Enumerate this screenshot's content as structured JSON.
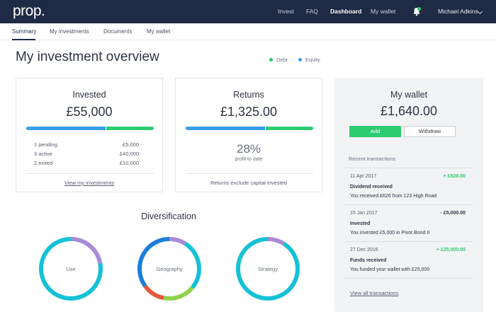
{
  "header": {
    "logo": "prop.",
    "nav": [
      "Invest",
      "FAQ",
      "Dashboard",
      "My wallet"
    ],
    "active_nav": "Dashboard",
    "notification_icon": "bell-icon",
    "user_name": "Michael Adkins",
    "user_menu_icon": "chevron-down-icon"
  },
  "subnav": {
    "tabs": [
      "Summary",
      "My investments",
      "Documents",
      "My wallet"
    ],
    "active": "Summary"
  },
  "page": {
    "title": "My investment overview",
    "legend": [
      {
        "label": "Debt",
        "color": "#2ecc71"
      },
      {
        "label": "Equity",
        "color": "#3a9ee8"
      }
    ]
  },
  "invested": {
    "title": "Invested",
    "amount": "£55,000",
    "bar_debt_fraction": 0.62,
    "rows": [
      {
        "label": "1 pending",
        "value": "£5,000"
      },
      {
        "label": "3 active",
        "value": "£40,000"
      },
      {
        "label": "2 exited",
        "value": "£10,000"
      }
    ],
    "link": "View my investments"
  },
  "returns": {
    "title": "Returns",
    "amount": "£1,325.00",
    "bar_debt_fraction": 0.62,
    "percent": "28%",
    "percent_label": "profit to date",
    "footnote": "Returns exclude capital invested"
  },
  "wallet": {
    "title": "My wallet",
    "amount": "£1,640.00",
    "add_label": "Add",
    "withdraw_label": "Withdraw",
    "recent_label": "Recent transactions",
    "transactions": [
      {
        "date": "11 Apr 2017",
        "amount": "+ £626.00",
        "type": "Dividend received",
        "desc": "You received £626 from 123 High Road",
        "color": "#2ecc71"
      },
      {
        "date": "15 Jan 2017",
        "amount": "- £5,000.00",
        "type": "Invested",
        "desc": "You invested £5,000 in Pivot Bond II",
        "color": "#2e3440"
      },
      {
        "date": "27 Dec 2016",
        "amount": "+ £25,000.00",
        "type": "Funds received",
        "desc": "You funded your wallet with £25,000",
        "color": "#2ecc71"
      }
    ],
    "view_all": "View all transactions"
  },
  "diversification": {
    "title": "Diversification",
    "donuts": [
      {
        "label": "Use",
        "segments": [
          {
            "fraction": 0.22,
            "color": "#a98ad6"
          },
          {
            "fraction": 0.78,
            "color": "#16c1d6"
          }
        ]
      },
      {
        "label": "Geography",
        "segments": [
          {
            "fraction": 0.09,
            "color": "#a98ad6"
          },
          {
            "fraction": 0.27,
            "color": "#16c1d6"
          },
          {
            "fraction": 0.17,
            "color": "#8ed14b"
          },
          {
            "fraction": 0.12,
            "color": "#e4573d"
          },
          {
            "fraction": 0.35,
            "color": "#1e7fd8"
          }
        ]
      },
      {
        "label": "Strategy",
        "segments": [
          {
            "fraction": 0.09,
            "color": "#a98ad6"
          },
          {
            "fraction": 0.91,
            "color": "#16c1d6"
          }
        ]
      }
    ]
  }
}
